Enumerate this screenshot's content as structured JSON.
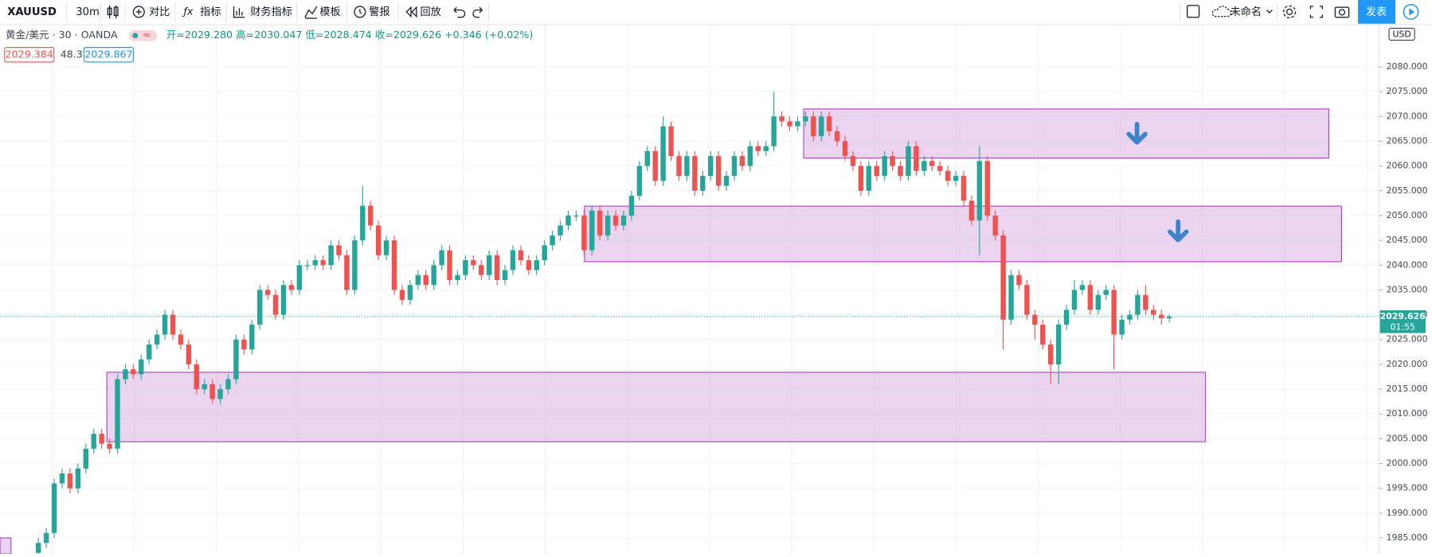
{
  "toolbar": {
    "symbol": "XAUUSD",
    "interval": "30m",
    "compare": "对比",
    "indicators": "指标",
    "financials": "财务指标",
    "templates": "模板",
    "alerts": "警报",
    "replay": "回放",
    "layout_name": "未命名",
    "publish": "发表"
  },
  "legend": {
    "instrument": "黄金/美元 · 30 · OANDA",
    "ohlc": "开=2029.280 高=2030.047 低=2028.474 收=2029.626 +0.346 (+0.02%)",
    "bid": "2029.384",
    "spread": "48.3",
    "ask": "2029.867"
  },
  "chart_data": {
    "type": "candlestick",
    "currency": "USD",
    "countdown": "01:55",
    "up_color": "#26a69a",
    "down_color": "#ef5350",
    "grid": true,
    "ylim": [
      1981.8,
      2088.5
    ],
    "yticks": [
      {
        "value": 1985,
        "label": "1985.000"
      },
      {
        "value": 1990,
        "label": "1990.000"
      },
      {
        "value": 1995,
        "label": "1995.000"
      },
      {
        "value": 2000,
        "label": "2000.000"
      },
      {
        "value": 2005,
        "label": "2005.000"
      },
      {
        "value": 2010,
        "label": "2010.000"
      },
      {
        "value": 2015,
        "label": "2015.000"
      },
      {
        "value": 2020,
        "label": "2020.000"
      },
      {
        "value": 2025,
        "label": "2025.000"
      },
      {
        "value": 2030,
        "label": "2030.000"
      },
      {
        "value": 2035,
        "label": "2035.000"
      },
      {
        "value": 2040,
        "label": "2040.000"
      },
      {
        "value": 2045,
        "label": "2045.000"
      },
      {
        "value": 2050,
        "label": "2050.000"
      },
      {
        "value": 2055,
        "label": "2055.000"
      },
      {
        "value": 2060,
        "label": "2060.000"
      },
      {
        "value": 2065,
        "label": "2065.000"
      },
      {
        "value": 2070,
        "label": "2070.000"
      },
      {
        "value": 2075,
        "label": "2075.000"
      },
      {
        "value": 2080,
        "label": "2080.000"
      }
    ],
    "zones": [
      {
        "top": 2071.5,
        "bottom": 2061.6
      },
      {
        "top": 2051.9,
        "bottom": 2040.7
      },
      {
        "top": 2018.4,
        "bottom": 2004.4
      },
      {
        "top": 1985,
        "bottom": 1981.8
      }
    ],
    "open": [
      1982,
      1984,
      1986,
      1996,
      1998,
      1995,
      1999,
      2003,
      2006,
      2004,
      2003,
      2017,
      2019,
      2018,
      2021,
      2024,
      2026,
      2030,
      2026,
      2024,
      2020,
      2015,
      2016,
      2013,
      2015,
      2017,
      2025,
      2023,
      2028,
      2035,
      2034,
      2030,
      2036,
      2035,
      2040,
      2040,
      2041,
      2040,
      2044,
      2042,
      2035,
      2045,
      2052,
      2048,
      2042,
      2045,
      2035,
      2033,
      2036,
      2038,
      2036,
      2040,
      2043,
      2037,
      2038,
      2041,
      2040,
      2038,
      2042,
      2037,
      2039,
      2043,
      2041,
      2039,
      2041,
      2044,
      2046,
      2048,
      2050,
      2050,
      2043,
      2051,
      2046,
      2050,
      2048,
      2050,
      2054,
      2060,
      2063,
      2057,
      2068,
      2062,
      2058,
      2062,
      2055,
      2058,
      2062,
      2056,
      2058,
      2062,
      2060,
      2064,
      2063,
      2064,
      2070,
      2069,
      2068,
      2069,
      2070,
      2066,
      2070,
      2067,
      2065,
      2062,
      2060,
      2055,
      2060,
      2058,
      2062,
      2060,
      2058,
      2064,
      2059,
      2061,
      2060,
      2059,
      2057,
      2058,
      2053,
      2049,
      2061,
      2050,
      2046,
      2029,
      2038,
      2036,
      2030,
      2028,
      2024,
      2020,
      2028,
      2031,
      2035,
      2036,
      2031,
      2034,
      2035,
      2026,
      2029,
      2030,
      2034,
      2031,
      2030,
      2029.28
    ],
    "high": [
      1985,
      1987,
      1997,
      1999,
      1999,
      2000,
      2004,
      2007,
      2007,
      2005,
      2018,
      2020,
      2020,
      2022,
      2025,
      2027,
      2031,
      2031,
      2027,
      2025,
      2021,
      2017,
      2017,
      2016,
      2018,
      2026,
      2026,
      2029,
      2036,
      2036,
      2035,
      2037,
      2037,
      2041,
      2041,
      2042,
      2042,
      2045,
      2045,
      2043,
      2046,
      2056,
      2053,
      2049,
      2046,
      2046,
      2036,
      2037,
      2039,
      2039,
      2041,
      2044,
      2044,
      2039,
      2042,
      2042,
      2041,
      2043,
      2043,
      2040,
      2044,
      2044,
      2042,
      2042,
      2045,
      2047,
      2049,
      2051,
      2051,
      2051,
      2052,
      2052,
      2051,
      2051,
      2051,
      2055,
      2061,
      2064,
      2064,
      2070,
      2069,
      2063,
      2063,
      2063,
      2059,
      2063,
      2063,
      2059,
      2063,
      2063,
      2065,
      2065,
      2065,
      2075,
      2071,
      2070,
      2070,
      2071,
      2071,
      2071,
      2071,
      2068,
      2066,
      2063,
      2061,
      2061,
      2061,
      2063,
      2063,
      2061,
      2065,
      2065,
      2062,
      2062,
      2061,
      2060,
      2059,
      2059,
      2054,
      2064,
      2062,
      2051,
      2047,
      2039,
      2039,
      2037,
      2031,
      2029,
      2025,
      2029,
      2032,
      2037,
      2037,
      2037,
      2035,
      2036,
      2036,
      2030,
      2031,
      2035,
      2036,
      2032,
      2031,
      2030.047
    ],
    "low": [
      1981,
      1983,
      1985,
      1995,
      1994,
      1994,
      1998,
      2002,
      2003,
      2002,
      2002,
      2016,
      2017,
      2017,
      2020,
      2023,
      2025,
      2025,
      2023,
      2019,
      2014,
      2014,
      2012,
      2012,
      2014,
      2016,
      2022,
      2022,
      2027,
      2033,
      2029,
      2029,
      2034,
      2034,
      2039,
      2039,
      2039,
      2039,
      2041,
      2034,
      2034,
      2044,
      2047,
      2041,
      2041,
      2034,
      2032,
      2032,
      2035,
      2035,
      2035,
      2039,
      2036,
      2036,
      2037,
      2039,
      2037,
      2037,
      2036,
      2036,
      2038,
      2040,
      2038,
      2038,
      2040,
      2043,
      2045,
      2047,
      2049,
      2042,
      2042,
      2045,
      2045,
      2047,
      2047,
      2049,
      2053,
      2059,
      2056,
      2056,
      2061,
      2057,
      2057,
      2054,
      2054,
      2057,
      2055,
      2055,
      2057,
      2059,
      2059,
      2062,
      2062,
      2063,
      2068,
      2067,
      2067,
      2068,
      2065,
      2065,
      2066,
      2064,
      2061,
      2059,
      2054,
      2054,
      2057,
      2057,
      2059,
      2057,
      2057,
      2058,
      2058,
      2059,
      2058,
      2056,
      2056,
      2052,
      2048,
      2042,
      2049,
      2045,
      2023,
      2028,
      2035,
      2029,
      2025,
      2023,
      2016,
      2016,
      2027,
      2030,
      2034,
      2030,
      2030,
      2033,
      2019,
      2025,
      2028,
      2029,
      2030,
      2029,
      2028,
      2028.474
    ],
    "close": [
      1984,
      1986,
      1996,
      1998,
      1995,
      1999,
      2003,
      2006,
      2004,
      2003,
      2017,
      2019,
      2018,
      2021,
      2024,
      2026,
      2030,
      2026,
      2024,
      2020,
      2015,
      2016,
      2013,
      2015,
      2017,
      2025,
      2023,
      2028,
      2035,
      2034,
      2030,
      2036,
      2035,
      2040,
      2040,
      2041,
      2040,
      2044,
      2042,
      2035,
      2045,
      2052,
      2048,
      2042,
      2045,
      2035,
      2033,
      2036,
      2038,
      2036,
      2040,
      2043,
      2037,
      2038,
      2041,
      2040,
      2038,
      2042,
      2037,
      2039,
      2043,
      2041,
      2039,
      2041,
      2044,
      2046,
      2048,
      2050,
      2050,
      2043,
      2051,
      2046,
      2050,
      2048,
      2050,
      2054,
      2060,
      2063,
      2057,
      2068,
      2062,
      2058,
      2062,
      2055,
      2058,
      2062,
      2056,
      2058,
      2062,
      2060,
      2064,
      2063,
      2064,
      2070,
      2069,
      2068,
      2069,
      2070,
      2066,
      2070,
      2067,
      2065,
      2062,
      2060,
      2055,
      2060,
      2058,
      2062,
      2060,
      2058,
      2064,
      2059,
      2061,
      2060,
      2059,
      2057,
      2058,
      2053,
      2049,
      2061,
      2050,
      2046,
      2029,
      2038,
      2036,
      2030,
      2028,
      2024,
      2020,
      2028,
      2031,
      2035,
      2036,
      2031,
      2034,
      2035,
      2026,
      2029,
      2030,
      2034,
      2031,
      2030,
      2029.28,
      2029.626
    ]
  }
}
